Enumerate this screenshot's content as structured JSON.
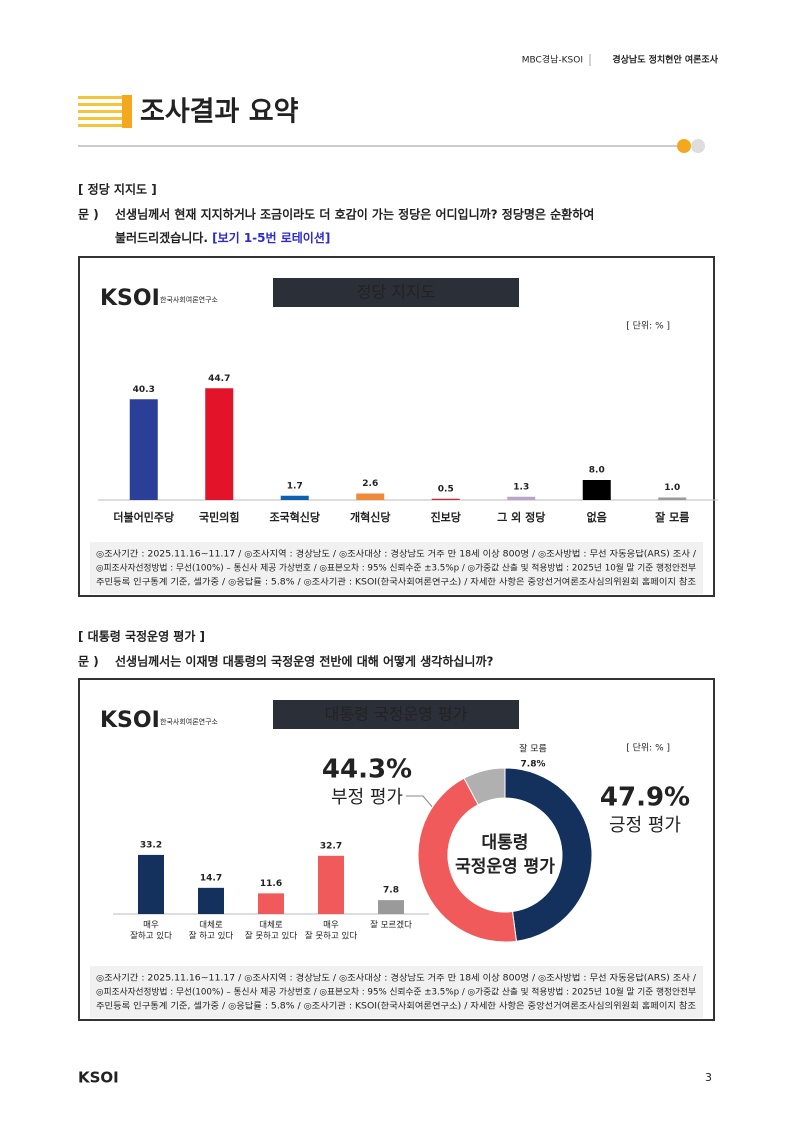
{
  "header": {
    "source": "MBC경남-KSOI",
    "title": "경상남도 정치현안 여론조사"
  },
  "page_title": "조사결과 요약",
  "sections": [
    {
      "heading": "[ 정당 지지도 ]",
      "question_prefix": "문 )",
      "question_lines": [
        "선생님께서 현재 지지하거나 조금이라도 더 호감이 가는 정당은 어디입니까? 정당명은 순환하여",
        "불러드리겠습니다."
      ],
      "question_note": "[보기 1-5번 로테이션]",
      "chart": {
        "type": "bar",
        "logo": "KSOI",
        "logo_sub": "한국사회여론연구소",
        "title": "정당 지지도",
        "unit": "[ 단위: % ]",
        "categories": [
          "더불어민주당",
          "국민의힘",
          "조국혁신당",
          "개혁신당",
          "진보당",
          "그 외 정당",
          "없음",
          "잘 모름"
        ],
        "values": [
          40.3,
          44.7,
          1.7,
          2.6,
          0.5,
          1.3,
          8.0,
          1.0
        ],
        "value_labels": [
          "40.3",
          "44.7",
          "1.7",
          "2.6",
          "0.5",
          "1.3",
          "8.0",
          "1.0"
        ],
        "colors": [
          "#2b3f99",
          "#e3142a",
          "#0d5fb0",
          "#f08a3a",
          "#d9223a",
          "#b9a6c6",
          "#000000",
          "#9a9a9a"
        ],
        "ylim": [
          0,
          50
        ],
        "footnote": [
          "◎조사기간 : 2025.11.16~11.17 / ◎조사지역 : 경상남도 / ◎조사대상 : 경상남도 거주 만 18세 이상 800명 / ◎조사방법 : 무선 자동응답(ARS) 조사 /",
          "◎피조사자선정방법 : 무선(100%) – 통신사 제공 가상번호 / ◎표본오차 : 95% 신뢰수준 ±3.5%p / ◎가중값 산출 및 적용방법 : 2025년 10월 말 기준 행정안전부",
          "주민등록 인구통계 기준, 셀가중 / ◎응답률 : 5.8% / ◎조사기관 : KSOI(한국사회여론연구소) / 자세한 사항은 중앙선거여론조사심의위원회 홈페이지 참조"
        ]
      }
    },
    {
      "heading": "[ 대통령 국정운영 평가 ]",
      "question_prefix": "문 )",
      "question_lines": [
        "선생님께서는 이재명 대통령의 국정운영 전반에 대해 어떻게 생각하십니까?"
      ],
      "chart": {
        "logo": "KSOI",
        "logo_sub": "한국사회여론연구소",
        "title": "대통령 국정운영 평가",
        "unit": "[ 단위: % ]",
        "bar": {
          "type": "bar",
          "categories": [
            [
              "매우",
              "잘하고 있다"
            ],
            [
              "대체로",
              "잘 하고 있다"
            ],
            [
              "대체로",
              "잘 못하고 있다"
            ],
            [
              "매우",
              "잘 못하고 있다"
            ],
            [
              "잘 모르겠다"
            ]
          ],
          "values": [
            33.2,
            14.7,
            11.6,
            32.7,
            7.8
          ],
          "colors": [
            "#13315c",
            "#13315c",
            "#f05a5a",
            "#f05a5a",
            "#9a9a9a"
          ],
          "ylim": [
            0,
            50
          ]
        },
        "pie": {
          "type": "pie",
          "center_label": [
            "대통령",
            "국정운영 평가"
          ],
          "series": [
            {
              "name": "긍정 평가",
              "value": 47.9,
              "value_label": "47.9%",
              "color": "#13315c"
            },
            {
              "name": "부정 평가",
              "value": 44.3,
              "value_label": "44.3%",
              "color": "#f05a5a"
            },
            {
              "name": "잘 모름",
              "value": 7.8,
              "value_label": "7.8%",
              "color": "#b0b0b0"
            }
          ]
        },
        "footnote": [
          "◎조사기간 : 2025.11.16~11.17 / ◎조사지역 : 경상남도 / ◎조사대상 : 경상남도 거주 만 18세 이상 800명 / ◎조사방법 : 무선 자동응답(ARS) 조사 /",
          "◎피조사자선정방법 : 무선(100%) – 통신사 제공 가상번호 / ◎표본오차 : 95% 신뢰수준 ±3.5%p / ◎가중값 산출 및 적용방법 : 2025년 10월 말 기준 행정안전부",
          "주민등록 인구통계 기준, 셀가중 / ◎응답률 : 5.8% / ◎조사기관 : KSOI(한국사회여론연구소) / 자세한 사항은 중앙선거여론조사심의위원회 홈페이지 참조"
        ]
      }
    }
  ],
  "footer": {
    "logo": "KSOI",
    "page_number": "3"
  }
}
